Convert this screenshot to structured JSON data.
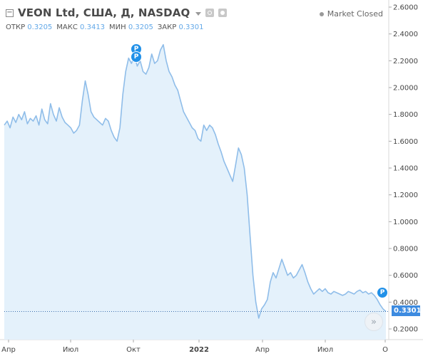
{
  "header": {
    "collapse_symbol": "−",
    "title": "VEON Ltd, США, Д, NASDAQ",
    "ohlc": [
      {
        "label": "ОТКР",
        "value": "0.3205"
      },
      {
        "label": "МАКС",
        "value": "0.3413"
      },
      {
        "label": "МИН",
        "value": "0.3205"
      },
      {
        "label": "ЗАКР",
        "value": "0.3301"
      }
    ],
    "status": "Market Closed"
  },
  "last_price_tag": "0.3301",
  "nav_button_symbol": "»",
  "markers": [
    {
      "label": "P"
    },
    {
      "label": "P"
    },
    {
      "label": "P"
    }
  ],
  "colors": {
    "line": "#8fbde9",
    "area": "#e4f1fb",
    "price_tag": "#3d8be0",
    "marker": "#2090e8"
  },
  "chart_data": {
    "type": "area",
    "title": "",
    "y_axis_ticks": [
      "2.6000",
      "2.4000",
      "2.2000",
      "2.0000",
      "1.8000",
      "1.6000",
      "1.4000",
      "1.2000",
      "1.0000",
      "0.8000",
      "0.6000",
      "0.4000",
      "0.2000"
    ],
    "ylim": [
      0.14,
      2.65
    ],
    "x_axis_ticks": [
      {
        "label": "Апр",
        "bold": false
      },
      {
        "label": "Июл",
        "bold": false
      },
      {
        "label": "Окт",
        "bold": false
      },
      {
        "label": "2022",
        "bold": true
      },
      {
        "label": "Апр",
        "bold": false
      },
      {
        "label": "Июл",
        "bold": false
      },
      {
        "label": "О",
        "bold": false
      }
    ],
    "last_price": 0.3301,
    "series": [
      {
        "values": [
          1.72,
          1.75,
          1.7,
          1.78,
          1.74,
          1.8,
          1.76,
          1.82,
          1.73,
          1.77,
          1.75,
          1.79,
          1.72,
          1.84,
          1.76,
          1.73,
          1.88,
          1.8,
          1.75,
          1.85,
          1.78,
          1.74,
          1.72,
          1.7,
          1.66,
          1.68,
          1.72,
          1.9,
          2.05,
          1.95,
          1.82,
          1.78,
          1.76,
          1.74,
          1.72,
          1.77,
          1.75,
          1.68,
          1.63,
          1.6,
          1.7,
          1.95,
          2.12,
          2.22,
          2.18,
          2.24,
          2.16,
          2.2,
          2.12,
          2.1,
          2.15,
          2.25,
          2.18,
          2.2,
          2.28,
          2.32,
          2.2,
          2.12,
          2.08,
          2.02,
          1.98,
          1.9,
          1.82,
          1.78,
          1.74,
          1.7,
          1.68,
          1.62,
          1.6,
          1.72,
          1.68,
          1.72,
          1.7,
          1.65,
          1.58,
          1.52,
          1.45,
          1.4,
          1.35,
          1.3,
          1.42,
          1.55,
          1.5,
          1.4,
          1.2,
          0.9,
          0.6,
          0.4,
          0.28,
          0.35,
          0.38,
          0.42,
          0.55,
          0.62,
          0.58,
          0.65,
          0.72,
          0.66,
          0.6,
          0.62,
          0.58,
          0.6,
          0.64,
          0.68,
          0.62,
          0.55,
          0.5,
          0.46,
          0.48,
          0.5,
          0.48,
          0.5,
          0.47,
          0.46,
          0.48,
          0.47,
          0.46,
          0.45,
          0.46,
          0.48,
          0.47,
          0.46,
          0.48,
          0.49,
          0.47,
          0.48,
          0.46,
          0.47,
          0.45,
          0.42,
          0.38,
          0.35,
          0.33
        ]
      }
    ]
  }
}
